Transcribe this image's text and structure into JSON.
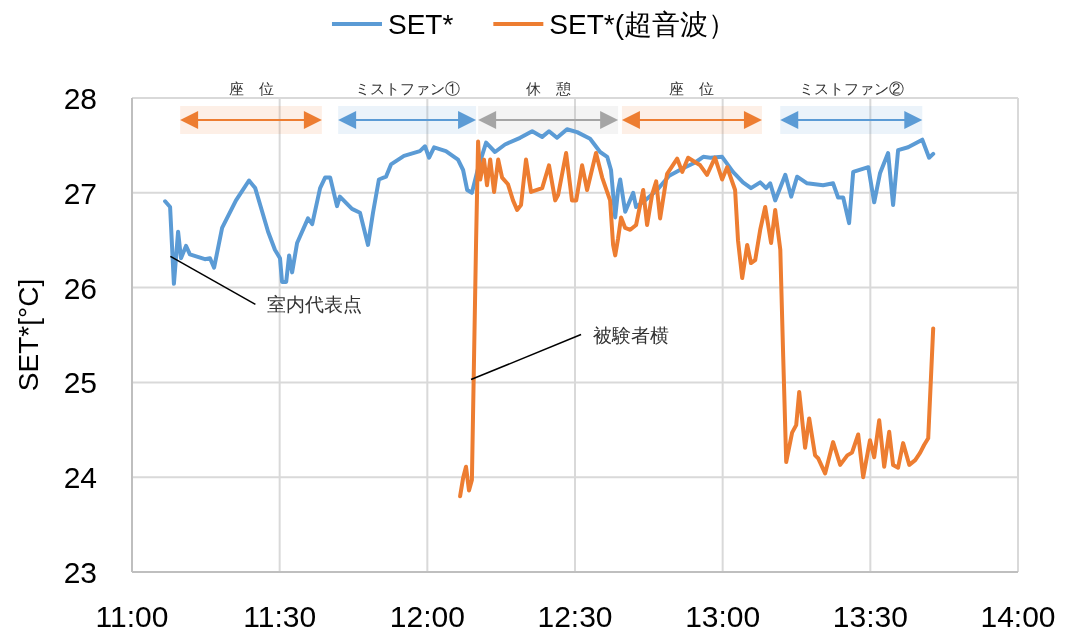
{
  "chart_data": {
    "type": "line",
    "ylabel": "SET*[°C]",
    "xlim": [
      11,
      14
    ],
    "ylim": [
      23,
      28
    ],
    "xticks": [
      {
        "value": 11,
        "label": "11:00"
      },
      {
        "value": 11.5,
        "label": "11:30"
      },
      {
        "value": 12,
        "label": "12:00"
      },
      {
        "value": 12.5,
        "label": "12:30"
      },
      {
        "value": 13,
        "label": "13:00"
      },
      {
        "value": 13.5,
        "label": "13:30"
      },
      {
        "value": 14,
        "label": "14:00"
      }
    ],
    "yticks": [
      23,
      24,
      25,
      26,
      27,
      28
    ],
    "grid": true,
    "legend": "top",
    "line_style": "solid",
    "series": [
      {
        "name": "SET*",
        "color": "#5b9bd5",
        "x": [
          11.112,
          11.129,
          11.142,
          11.156,
          11.166,
          11.183,
          11.196,
          11.247,
          11.264,
          11.278,
          11.305,
          11.352,
          11.396,
          11.417,
          11.461,
          11.484,
          11.501,
          11.508,
          11.522,
          11.532,
          11.542,
          11.559,
          11.596,
          11.61,
          11.637,
          11.654,
          11.671,
          11.694,
          11.704,
          11.745,
          11.772,
          11.799,
          11.816,
          11.836,
          11.86,
          11.877,
          11.921,
          11.975,
          11.992,
          12.006,
          12.023,
          12.063,
          12.104,
          12.121,
          12.135,
          12.151,
          12.172,
          12.199,
          12.229,
          12.263,
          12.314,
          12.355,
          12.389,
          12.412,
          12.439,
          12.473,
          12.507,
          12.551,
          12.585,
          12.609,
          12.622,
          12.636,
          12.646,
          12.653,
          12.67,
          12.697,
          12.707,
          12.737,
          12.778,
          12.819,
          12.866,
          12.907,
          12.934,
          12.958,
          12.998,
          13.035,
          13.069,
          13.096,
          13.127,
          13.147,
          13.161,
          13.178,
          13.212,
          13.232,
          13.252,
          13.286,
          13.34,
          13.374,
          13.391,
          13.408,
          13.428,
          13.442,
          13.493,
          13.513,
          13.533,
          13.56,
          13.577,
          13.594,
          13.628,
          13.676,
          13.699,
          13.713
        ],
        "values": [
          26.91,
          26.85,
          26.04,
          26.59,
          26.31,
          26.44,
          26.35,
          26.3,
          26.31,
          26.21,
          26.63,
          26.92,
          27.13,
          27.05,
          26.59,
          26.4,
          26.31,
          26.06,
          26.06,
          26.34,
          26.16,
          26.47,
          26.73,
          26.67,
          27.05,
          27.16,
          27.16,
          26.86,
          26.96,
          26.83,
          26.79,
          26.45,
          26.79,
          27.14,
          27.17,
          27.3,
          27.39,
          27.44,
          27.49,
          27.37,
          27.48,
          27.44,
          27.35,
          27.24,
          27.03,
          27.0,
          27.26,
          27.53,
          27.43,
          27.51,
          27.58,
          27.65,
          27.59,
          27.65,
          27.58,
          27.67,
          27.64,
          27.57,
          27.43,
          27.38,
          27.24,
          26.74,
          27.03,
          27.14,
          26.8,
          27.0,
          26.85,
          26.92,
          27.03,
          27.18,
          27.26,
          27.32,
          27.38,
          27.37,
          27.38,
          27.22,
          27.11,
          27.05,
          27.11,
          27.05,
          27.1,
          26.92,
          27.19,
          26.96,
          27.17,
          27.1,
          27.08,
          27.1,
          26.95,
          26.95,
          26.68,
          27.22,
          27.27,
          26.9,
          27.21,
          27.42,
          26.87,
          27.45,
          27.48,
          27.56,
          27.37,
          27.41
        ]
      },
      {
        "name": "SET*(超音波）",
        "color": "#ed7d31",
        "x": [
          12.111,
          12.121,
          12.131,
          12.141,
          12.151,
          12.165,
          12.172,
          12.179,
          12.192,
          12.202,
          12.213,
          12.226,
          12.24,
          12.253,
          12.273,
          12.29,
          12.304,
          12.317,
          12.334,
          12.351,
          12.389,
          12.412,
          12.433,
          12.443,
          12.47,
          12.49,
          12.504,
          12.524,
          12.541,
          12.571,
          12.592,
          12.619,
          12.629,
          12.636,
          12.646,
          12.656,
          12.67,
          12.687,
          12.707,
          12.731,
          12.744,
          12.761,
          12.775,
          12.788,
          12.812,
          12.846,
          12.863,
          12.883,
          12.924,
          12.947,
          12.974,
          12.998,
          13.015,
          13.042,
          13.052,
          13.066,
          13.083,
          13.096,
          13.11,
          13.127,
          13.144,
          13.164,
          13.178,
          13.195,
          13.205,
          13.215,
          13.235,
          13.249,
          13.259,
          13.279,
          13.293,
          13.313,
          13.323,
          13.347,
          13.374,
          13.398,
          13.422,
          13.438,
          13.459,
          13.476,
          13.499,
          13.513,
          13.53,
          13.547,
          13.564,
          13.577,
          13.594,
          13.611,
          13.632,
          13.652,
          13.669,
          13.682,
          13.696,
          13.713
        ],
        "values": [
          23.8,
          23.99,
          24.11,
          23.86,
          23.97,
          26.5,
          27.54,
          27.14,
          27.35,
          27.08,
          27.35,
          27.01,
          27.35,
          27.16,
          27.09,
          26.92,
          26.82,
          26.87,
          27.35,
          27.01,
          27.05,
          27.29,
          26.92,
          26.98,
          27.42,
          26.92,
          26.92,
          27.29,
          27.03,
          27.42,
          27.16,
          26.92,
          26.45,
          26.34,
          26.52,
          26.74,
          26.63,
          26.61,
          26.66,
          27.03,
          26.66,
          26.98,
          27.12,
          26.73,
          27.2,
          27.36,
          27.22,
          27.37,
          27.29,
          27.19,
          27.37,
          27.14,
          27.27,
          27.03,
          26.5,
          26.1,
          26.45,
          26.26,
          26.29,
          26.61,
          26.85,
          26.47,
          26.82,
          26.4,
          25.27,
          24.16,
          24.47,
          24.55,
          24.9,
          24.31,
          24.62,
          24.23,
          24.2,
          24.04,
          24.37,
          24.13,
          24.23,
          24.26,
          24.45,
          24.0,
          24.39,
          24.21,
          24.6,
          24.11,
          24.48,
          24.13,
          24.1,
          24.36,
          24.13,
          24.18,
          24.26,
          24.34,
          24.41,
          25.57
        ]
      }
    ],
    "bands": [
      {
        "axis": "x",
        "from": 11.163,
        "to": 11.643,
        "label": "座　位",
        "color": "#ed7d31"
      },
      {
        "axis": "x",
        "from": 11.698,
        "to": 12.165,
        "label": "ミストファン①",
        "color": "#5b9bd5"
      },
      {
        "axis": "x",
        "from": 12.172,
        "to": 12.646,
        "label": "休　憩",
        "color": "#a5a5a5"
      },
      {
        "axis": "x",
        "from": 12.659,
        "to": 13.133,
        "label": "座　位",
        "color": "#ed7d31"
      },
      {
        "axis": "x",
        "from": 13.195,
        "to": 13.676,
        "label": "ミストファン②",
        "color": "#5b9bd5"
      }
    ],
    "annotations": [
      {
        "text": "室内代表点",
        "x": 11.13,
        "y": 26.33
      },
      {
        "text": "被験者横",
        "x": 12.148,
        "y": 25.03
      }
    ]
  }
}
